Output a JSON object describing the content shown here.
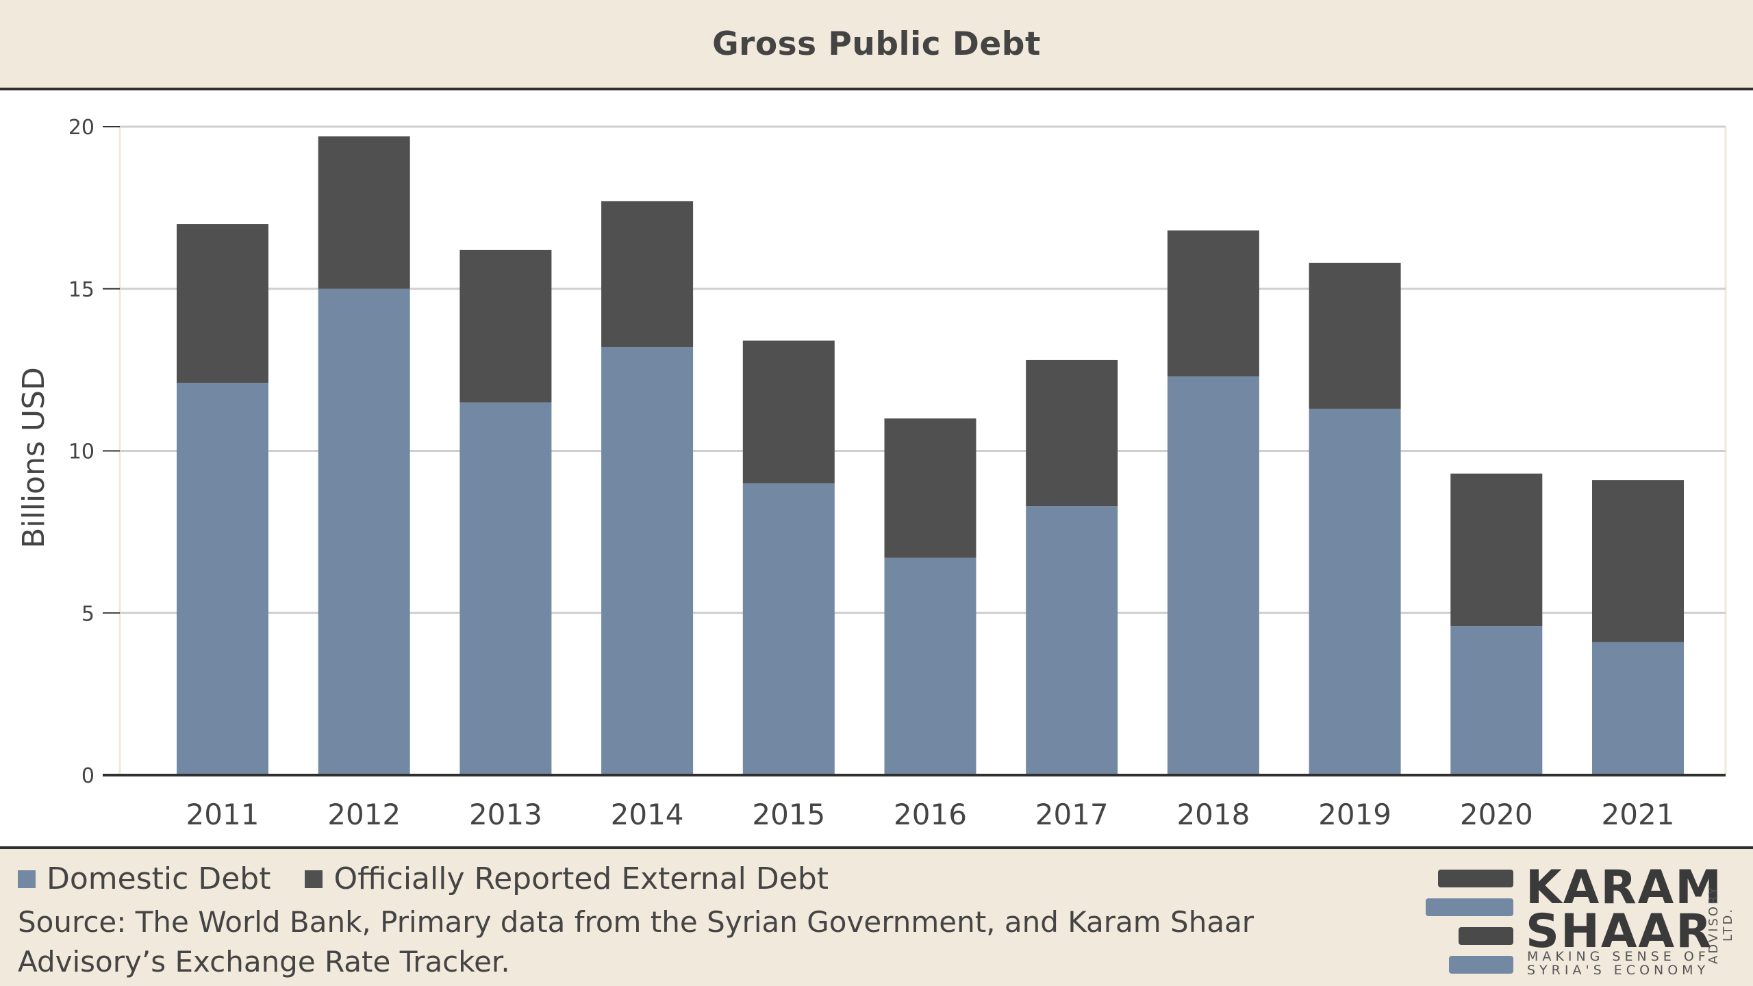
{
  "chart_data": {
    "type": "bar",
    "stacked": true,
    "title": "Gross Public Debt",
    "ylabel": "Billions USD",
    "xlabel": "",
    "ylim": [
      0,
      20
    ],
    "yticks": [
      0,
      5,
      10,
      15,
      20
    ],
    "grid": true,
    "categories": [
      "2011",
      "2012",
      "2013",
      "2014",
      "2015",
      "2016",
      "2017",
      "2018",
      "2019",
      "2020",
      "2021"
    ],
    "series": [
      {
        "name": "Domestic Debt",
        "color": "#7388a2",
        "values": [
          12.1,
          15.0,
          11.5,
          13.2,
          9.0,
          6.7,
          8.3,
          12.3,
          11.3,
          4.6,
          4.1
        ]
      },
      {
        "name": "Officially Reported External Debt",
        "color": "#505050",
        "values": [
          4.9,
          4.7,
          4.7,
          4.5,
          4.4,
          4.3,
          4.5,
          4.5,
          4.5,
          4.7,
          5.0
        ]
      }
    ],
    "legend_position": "bottom-left"
  },
  "footer": {
    "source": "Source: The World Bank, Primary data from the Syrian Government, and Karam Shaar Advisory’s Exchange Rate Tracker."
  },
  "logo": {
    "line1": "KARAM",
    "line2": "SHAAR",
    "tagline1": "MAKING SENSE OF",
    "tagline2": "SYRIA'S ECONOMY",
    "vertical": "ADVISORY LTD."
  },
  "colors": {
    "background": "#f1e9dc",
    "domestic": "#7388a2",
    "external": "#505050"
  }
}
